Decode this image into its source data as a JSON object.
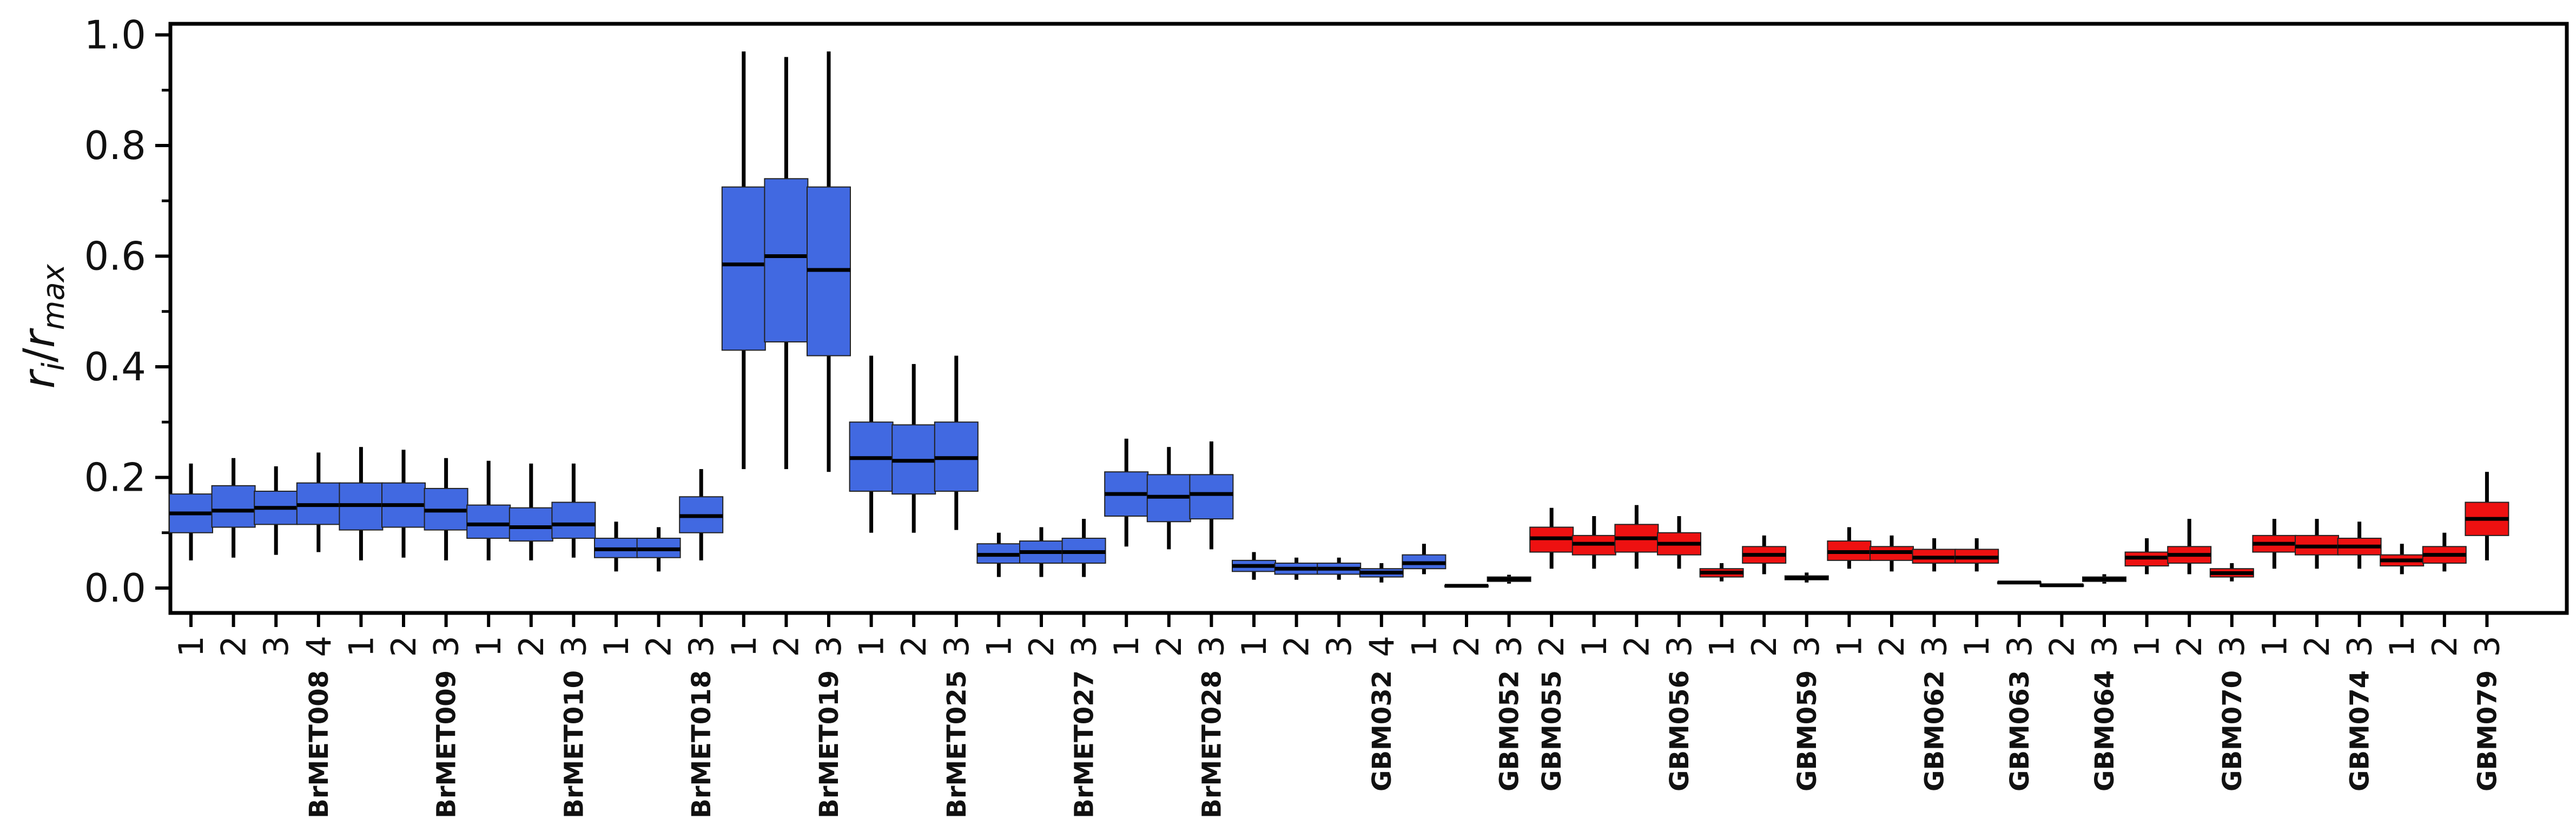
{
  "chart_data": {
    "type": "box",
    "ylabel": "r_i/r_max",
    "ylim": [
      -0.045,
      1.02
    ],
    "yticks": [
      "0.0",
      "0.2",
      "0.4",
      "0.6",
      "0.8",
      "1.0"
    ],
    "colors": {
      "BrMET": "#4169E1",
      "GBM": "#EE1111"
    },
    "groups": [
      {
        "name": "BrMET008",
        "color": "BrMET",
        "boxes": [
          {
            "label": "1",
            "whislo": 0.05,
            "q1": 0.1,
            "med": 0.135,
            "q3": 0.17,
            "whishi": 0.225
          },
          {
            "label": "2",
            "whislo": 0.055,
            "q1": 0.11,
            "med": 0.14,
            "q3": 0.185,
            "whishi": 0.235
          },
          {
            "label": "3",
            "whislo": 0.06,
            "q1": 0.115,
            "med": 0.145,
            "q3": 0.175,
            "whishi": 0.22
          },
          {
            "label": "4",
            "whislo": 0.065,
            "q1": 0.115,
            "med": 0.15,
            "q3": 0.19,
            "whishi": 0.245
          }
        ]
      },
      {
        "name": "BrMET009",
        "color": "BrMET",
        "boxes": [
          {
            "label": "1",
            "whislo": 0.05,
            "q1": 0.105,
            "med": 0.15,
            "q3": 0.19,
            "whishi": 0.255
          },
          {
            "label": "2",
            "whislo": 0.055,
            "q1": 0.11,
            "med": 0.15,
            "q3": 0.19,
            "whishi": 0.25
          },
          {
            "label": "3",
            "whislo": 0.05,
            "q1": 0.105,
            "med": 0.14,
            "q3": 0.18,
            "whishi": 0.235
          }
        ]
      },
      {
        "name": "BrMET010",
        "color": "BrMET",
        "boxes": [
          {
            "label": "1",
            "whislo": 0.05,
            "q1": 0.09,
            "med": 0.115,
            "q3": 0.15,
            "whishi": 0.23
          },
          {
            "label": "2",
            "whislo": 0.05,
            "q1": 0.085,
            "med": 0.11,
            "q3": 0.145,
            "whishi": 0.225
          },
          {
            "label": "3",
            "whislo": 0.055,
            "q1": 0.09,
            "med": 0.115,
            "q3": 0.155,
            "whishi": 0.225
          }
        ]
      },
      {
        "name": "BrMET018",
        "color": "BrMET",
        "boxes": [
          {
            "label": "1",
            "whislo": 0.03,
            "q1": 0.055,
            "med": 0.07,
            "q3": 0.09,
            "whishi": 0.12
          },
          {
            "label": "2",
            "whislo": 0.03,
            "q1": 0.055,
            "med": 0.07,
            "q3": 0.09,
            "whishi": 0.11
          },
          {
            "label": "3",
            "whislo": 0.05,
            "q1": 0.1,
            "med": 0.13,
            "q3": 0.165,
            "whishi": 0.215
          }
        ]
      },
      {
        "name": "BrMET019",
        "color": "BrMET",
        "boxes": [
          {
            "label": "1",
            "whislo": 0.215,
            "q1": 0.43,
            "med": 0.585,
            "q3": 0.725,
            "whishi": 0.97
          },
          {
            "label": "2",
            "whislo": 0.215,
            "q1": 0.445,
            "med": 0.6,
            "q3": 0.74,
            "whishi": 0.96
          },
          {
            "label": "3",
            "whislo": 0.21,
            "q1": 0.42,
            "med": 0.575,
            "q3": 0.725,
            "whishi": 0.97
          }
        ]
      },
      {
        "name": "BrMET025",
        "color": "BrMET",
        "boxes": [
          {
            "label": "1",
            "whislo": 0.1,
            "q1": 0.175,
            "med": 0.235,
            "q3": 0.3,
            "whishi": 0.42
          },
          {
            "label": "2",
            "whislo": 0.1,
            "q1": 0.17,
            "med": 0.23,
            "q3": 0.295,
            "whishi": 0.405
          },
          {
            "label": "3",
            "whislo": 0.105,
            "q1": 0.175,
            "med": 0.235,
            "q3": 0.3,
            "whishi": 0.42
          }
        ]
      },
      {
        "name": "BrMET027",
        "color": "BrMET",
        "boxes": [
          {
            "label": "1",
            "whislo": 0.02,
            "q1": 0.045,
            "med": 0.06,
            "q3": 0.08,
            "whishi": 0.1
          },
          {
            "label": "2",
            "whislo": 0.02,
            "q1": 0.045,
            "med": 0.065,
            "q3": 0.085,
            "whishi": 0.11
          },
          {
            "label": "3",
            "whislo": 0.02,
            "q1": 0.045,
            "med": 0.065,
            "q3": 0.09,
            "whishi": 0.125
          }
        ]
      },
      {
        "name": "BrMET028",
        "color": "BrMET",
        "boxes": [
          {
            "label": "1",
            "whislo": 0.075,
            "q1": 0.13,
            "med": 0.17,
            "q3": 0.21,
            "whishi": 0.27
          },
          {
            "label": "2",
            "whislo": 0.07,
            "q1": 0.12,
            "med": 0.165,
            "q3": 0.205,
            "whishi": 0.255
          },
          {
            "label": "3",
            "whislo": 0.07,
            "q1": 0.125,
            "med": 0.17,
            "q3": 0.205,
            "whishi": 0.265
          }
        ]
      },
      {
        "name": "GBM032",
        "color": "BrMET",
        "boxes": [
          {
            "label": "1",
            "whislo": 0.015,
            "q1": 0.03,
            "med": 0.04,
            "q3": 0.05,
            "whishi": 0.065
          },
          {
            "label": "2",
            "whislo": 0.015,
            "q1": 0.025,
            "med": 0.035,
            "q3": 0.045,
            "whishi": 0.055
          },
          {
            "label": "3",
            "whislo": 0.015,
            "q1": 0.025,
            "med": 0.035,
            "q3": 0.045,
            "whishi": 0.055
          },
          {
            "label": "4",
            "whislo": 0.01,
            "q1": 0.02,
            "med": 0.028,
            "q3": 0.035,
            "whishi": 0.045
          }
        ]
      },
      {
        "name": "GBM052",
        "color": "BrMET",
        "boxes": [
          {
            "label": "1",
            "whislo": 0.025,
            "q1": 0.035,
            "med": 0.045,
            "q3": 0.06,
            "whishi": 0.08
          },
          {
            "label": "2",
            "whislo": 0.002,
            "q1": 0.003,
            "med": 0.004,
            "q3": 0.005,
            "whishi": 0.006
          },
          {
            "label": "3",
            "whislo": 0.008,
            "q1": 0.012,
            "med": 0.016,
            "q3": 0.02,
            "whishi": 0.024
          }
        ]
      },
      {
        "name": "GBM055",
        "color": "GBM",
        "boxes": [
          {
            "label": "2",
            "whislo": 0.035,
            "q1": 0.065,
            "med": 0.09,
            "q3": 0.11,
            "whishi": 0.145
          }
        ]
      },
      {
        "name": "GBM056",
        "color": "GBM",
        "boxes": [
          {
            "label": "1",
            "whislo": 0.035,
            "q1": 0.06,
            "med": 0.08,
            "q3": 0.095,
            "whishi": 0.13
          },
          {
            "label": "2",
            "whislo": 0.035,
            "q1": 0.065,
            "med": 0.09,
            "q3": 0.115,
            "whishi": 0.15
          },
          {
            "label": "3",
            "whislo": 0.035,
            "q1": 0.06,
            "med": 0.08,
            "q3": 0.1,
            "whishi": 0.13
          }
        ]
      },
      {
        "name": "GBM059",
        "color": "GBM",
        "boxes": [
          {
            "label": "1",
            "whislo": 0.012,
            "q1": 0.02,
            "med": 0.028,
            "q3": 0.035,
            "whishi": 0.045
          },
          {
            "label": "2",
            "whislo": 0.025,
            "q1": 0.045,
            "med": 0.06,
            "q3": 0.075,
            "whishi": 0.095
          },
          {
            "label": "3",
            "whislo": 0.01,
            "q1": 0.015,
            "med": 0.018,
            "q3": 0.022,
            "whishi": 0.028
          }
        ]
      },
      {
        "name": "GBM062",
        "color": "GBM",
        "boxes": [
          {
            "label": "1",
            "whislo": 0.035,
            "q1": 0.05,
            "med": 0.065,
            "q3": 0.085,
            "whishi": 0.11
          },
          {
            "label": "2",
            "whislo": 0.03,
            "q1": 0.05,
            "med": 0.065,
            "q3": 0.075,
            "whishi": 0.095
          },
          {
            "label": "3",
            "whislo": 0.03,
            "q1": 0.045,
            "med": 0.055,
            "q3": 0.07,
            "whishi": 0.09
          }
        ]
      },
      {
        "name": "GBM063",
        "color": "GBM",
        "boxes": [
          {
            "label": "1",
            "whislo": 0.03,
            "q1": 0.045,
            "med": 0.055,
            "q3": 0.07,
            "whishi": 0.09
          },
          {
            "label": "3",
            "whislo": 0.008,
            "q1": 0.009,
            "med": 0.01,
            "q3": 0.011,
            "whishi": 0.012
          }
        ]
      },
      {
        "name": "GBM064",
        "color": "GBM",
        "boxes": [
          {
            "label": "2",
            "whislo": 0.003,
            "q1": 0.004,
            "med": 0.005,
            "q3": 0.006,
            "whishi": 0.007
          },
          {
            "label": "3",
            "whislo": 0.008,
            "q1": 0.012,
            "med": 0.016,
            "q3": 0.02,
            "whishi": 0.025
          }
        ]
      },
      {
        "name": "GBM070",
        "color": "GBM",
        "boxes": [
          {
            "label": "1",
            "whislo": 0.025,
            "q1": 0.04,
            "med": 0.055,
            "q3": 0.065,
            "whishi": 0.09
          },
          {
            "label": "2",
            "whislo": 0.025,
            "q1": 0.045,
            "med": 0.06,
            "q3": 0.075,
            "whishi": 0.125
          },
          {
            "label": "3",
            "whislo": 0.012,
            "q1": 0.02,
            "med": 0.027,
            "q3": 0.035,
            "whishi": 0.045
          }
        ]
      },
      {
        "name": "GBM074",
        "color": "GBM",
        "boxes": [
          {
            "label": "1",
            "whislo": 0.035,
            "q1": 0.065,
            "med": 0.08,
            "q3": 0.095,
            "whishi": 0.125
          },
          {
            "label": "2",
            "whislo": 0.035,
            "q1": 0.06,
            "med": 0.075,
            "q3": 0.095,
            "whishi": 0.125
          },
          {
            "label": "3",
            "whislo": 0.035,
            "q1": 0.06,
            "med": 0.075,
            "q3": 0.09,
            "whishi": 0.12
          }
        ]
      },
      {
        "name": "GBM079",
        "color": "GBM",
        "boxes": [
          {
            "label": "1",
            "whislo": 0.025,
            "q1": 0.04,
            "med": 0.05,
            "q3": 0.06,
            "whishi": 0.08
          },
          {
            "label": "2",
            "whislo": 0.03,
            "q1": 0.045,
            "med": 0.06,
            "q3": 0.075,
            "whishi": 0.1
          },
          {
            "label": "3",
            "whislo": 0.05,
            "q1": 0.095,
            "med": 0.125,
            "q3": 0.155,
            "whishi": 0.21
          }
        ]
      }
    ]
  }
}
